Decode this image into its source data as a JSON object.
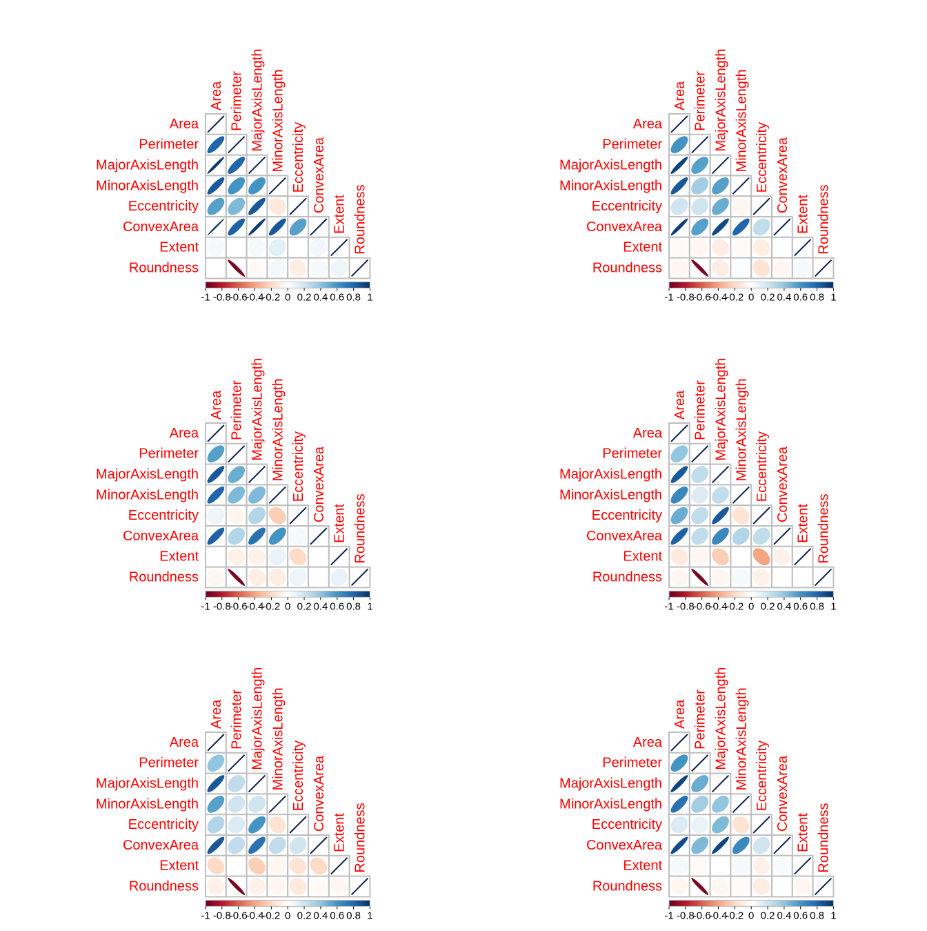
{
  "colors": {
    "label_color": "#ff0000",
    "grid_color": "#bebebe",
    "diagonal_line_color": "#0a1f4d",
    "tick_text_color": "#000000",
    "colorbar_stops": [
      "#67001f",
      "#b2182b",
      "#d6604d",
      "#f4a582",
      "#fddbc7",
      "#ffffff",
      "#d1e5f0",
      "#92c5de",
      "#4393c3",
      "#2166ac",
      "#053061"
    ]
  },
  "chart_data": [
    {
      "type": "heatmap",
      "subtype": "corrplot-ellipse-lower",
      "variables": [
        "Area",
        "Perimeter",
        "MajorAxisLength",
        "MinorAxisLength",
        "Eccentricity",
        "ConvexArea",
        "Extent",
        "Roundness"
      ],
      "lower_triangle": [
        [],
        [
          0.8
        ],
        [
          0.97,
          0.8
        ],
        [
          0.85,
          0.6,
          0.6
        ],
        [
          0.55,
          0.45,
          0.85,
          -0.12
        ],
        [
          0.99,
          0.82,
          0.96,
          0.85,
          0.55
        ],
        [
          0.05,
          0.0,
          0.05,
          0.12,
          0.0,
          0.06
        ],
        [
          0.0,
          -0.95,
          -0.03,
          0.06,
          -0.1,
          0.05,
          0.08
        ]
      ],
      "colorbar": {
        "min": -1,
        "max": 1,
        "tick_labels": [
          "-1",
          "-0.8",
          "-0.6",
          "-0.4",
          "-0.2",
          "0",
          "0.2",
          "0.4",
          "0.6",
          "0.8",
          "1"
        ]
      }
    },
    {
      "type": "heatmap",
      "subtype": "corrplot-ellipse-lower",
      "variables": [
        "Area",
        "Perimeter",
        "MajorAxisLength",
        "MinorAxisLength",
        "Eccentricity",
        "ConvexArea",
        "Extent",
        "Roundness"
      ],
      "lower_triangle": [
        [],
        [
          0.6
        ],
        [
          0.93,
          0.55
        ],
        [
          0.85,
          0.35,
          0.55
        ],
        [
          0.2,
          0.2,
          0.5,
          -0.05
        ],
        [
          0.95,
          0.55,
          0.9,
          0.8,
          0.25
        ],
        [
          -0.03,
          -0.05,
          -0.1,
          -0.03,
          -0.1,
          0.0
        ],
        [
          -0.05,
          -0.95,
          -0.1,
          0.02,
          -0.15,
          -0.05,
          0.05
        ]
      ],
      "colorbar": {
        "min": -1,
        "max": 1,
        "tick_labels": [
          "-1",
          "-0.8",
          "-0.6",
          "-0.4",
          "-0.2",
          "0",
          "0.2",
          "0.4",
          "0.6",
          "0.8",
          "1"
        ]
      }
    },
    {
      "type": "heatmap",
      "subtype": "corrplot-ellipse-lower",
      "variables": [
        "Area",
        "Perimeter",
        "MajorAxisLength",
        "MinorAxisLength",
        "Eccentricity",
        "ConvexArea",
        "Extent",
        "Roundness"
      ],
      "lower_triangle": [
        [],
        [
          0.55
        ],
        [
          0.85,
          0.5
        ],
        [
          0.8,
          0.45,
          0.45
        ],
        [
          0.08,
          -0.05,
          0.3,
          -0.25
        ],
        [
          0.82,
          0.3,
          0.75,
          0.6,
          0.05
        ],
        [
          0.0,
          -0.08,
          -0.08,
          0.1,
          -0.2,
          0.0
        ],
        [
          -0.05,
          -0.95,
          -0.1,
          -0.1,
          0.08,
          0.0,
          0.1
        ]
      ],
      "colorbar": {
        "min": -1,
        "max": 1,
        "tick_labels": [
          "-1",
          "-0.8",
          "-0.6",
          "-0.4",
          "-0.2",
          "0",
          "0.2",
          "0.4",
          "0.6",
          "0.8",
          "1"
        ]
      }
    },
    {
      "type": "heatmap",
      "subtype": "corrplot-ellipse-lower",
      "variables": [
        "Area",
        "Perimeter",
        "MajorAxisLength",
        "MinorAxisLength",
        "Eccentricity",
        "ConvexArea",
        "Extent",
        "Roundness"
      ],
      "lower_triangle": [
        [],
        [
          0.4
        ],
        [
          0.85,
          0.25
        ],
        [
          0.65,
          0.15,
          0.25
        ],
        [
          0.5,
          0.25,
          0.85,
          -0.15
        ],
        [
          0.82,
          0.25,
          0.65,
          0.3,
          0.25
        ],
        [
          -0.12,
          -0.05,
          -0.25,
          0.0,
          -0.4,
          -0.08
        ],
        [
          -0.05,
          -0.95,
          -0.05,
          0.05,
          -0.08,
          0.0,
          0.0
        ]
      ],
      "colorbar": {
        "min": -1,
        "max": 1,
        "tick_labels": [
          "-1",
          "-0.8",
          "-0.6",
          "-0.4",
          "-0.2",
          "0",
          "0.2",
          "0.4",
          "0.6",
          "0.8",
          "1"
        ]
      }
    },
    {
      "type": "heatmap",
      "subtype": "corrplot-ellipse-lower",
      "variables": [
        "Area",
        "Perimeter",
        "MajorAxisLength",
        "MinorAxisLength",
        "Eccentricity",
        "ConvexArea",
        "Extent",
        "Roundness"
      ],
      "lower_triangle": [
        [],
        [
          0.4
        ],
        [
          0.85,
          0.25
        ],
        [
          0.55,
          0.2,
          0.2
        ],
        [
          0.3,
          0.15,
          0.6,
          -0.15
        ],
        [
          0.85,
          0.25,
          0.75,
          0.25,
          0.2
        ],
        [
          -0.2,
          0.0,
          -0.25,
          -0.05,
          -0.15,
          -0.2
        ],
        [
          -0.08,
          -0.95,
          -0.08,
          -0.05,
          -0.12,
          -0.03,
          -0.05
        ]
      ],
      "colorbar": {
        "min": -1,
        "max": 1,
        "tick_labels": [
          "-1",
          "-0.8",
          "-0.6",
          "-0.4",
          "-0.2",
          "0",
          "0.2",
          "0.4",
          "0.6",
          "0.8",
          "1"
        ]
      }
    },
    {
      "type": "heatmap",
      "subtype": "corrplot-ellipse-lower",
      "variables": [
        "Area",
        "Perimeter",
        "MajorAxisLength",
        "MinorAxisLength",
        "Eccentricity",
        "ConvexArea",
        "Extent",
        "Roundness"
      ],
      "lower_triangle": [
        [],
        [
          0.6
        ],
        [
          0.92,
          0.5
        ],
        [
          0.75,
          0.35,
          0.4
        ],
        [
          0.15,
          0.1,
          0.45,
          -0.15
        ],
        [
          0.9,
          0.45,
          0.92,
          0.65,
          0.2
        ],
        [
          0.05,
          -0.03,
          0.0,
          0.05,
          -0.08,
          0.03
        ],
        [
          -0.05,
          -0.95,
          -0.05,
          -0.03,
          -0.1,
          0.0,
          -0.05
        ]
      ],
      "colorbar": {
        "min": -1,
        "max": 1,
        "tick_labels": [
          "-1",
          "-0.8",
          "-0.6",
          "-0.4",
          "-0.2",
          "0",
          "0.2",
          "0.4",
          "0.6",
          "0.8",
          "1"
        ]
      }
    }
  ]
}
